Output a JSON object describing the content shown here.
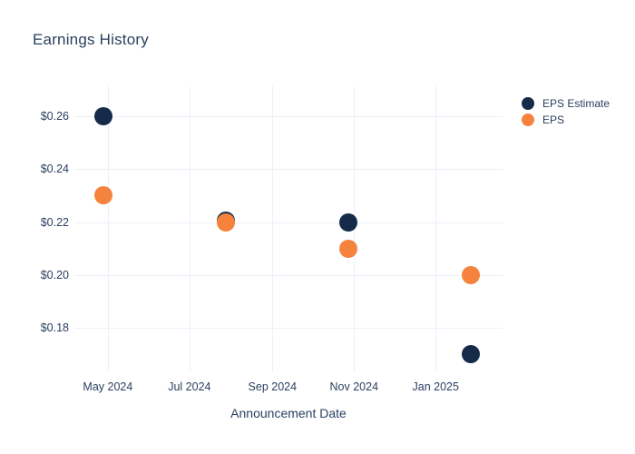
{
  "title": "Earnings History",
  "chart_data": {
    "type": "scatter",
    "title": "Earnings History",
    "xlabel": "Announcement Date",
    "ylabel": "",
    "grid": true,
    "legend_position": "outside-top-right",
    "background_color": "#ffffff",
    "grid_color": "#ebf0f8",
    "text_color": "#2a3f5f",
    "marker_size_px": 20,
    "xlim": [
      "2024-04-06",
      "2025-02-20"
    ],
    "ylim": [
      0.1633,
      0.2713
    ],
    "x_ticks": [
      {
        "value": "2024-05-01",
        "label": "May 2024"
      },
      {
        "value": "2024-07-01",
        "label": "Jul 2024"
      },
      {
        "value": "2024-09-01",
        "label": "Sep 2024"
      },
      {
        "value": "2024-11-01",
        "label": "Nov 2024"
      },
      {
        "value": "2025-01-01",
        "label": "Jan 2025"
      }
    ],
    "y_ticks": [
      {
        "value": 0.26,
        "label": "$0.26"
      },
      {
        "value": 0.24,
        "label": "$0.24"
      },
      {
        "value": 0.22,
        "label": "$0.22"
      },
      {
        "value": 0.2,
        "label": "$0.20"
      },
      {
        "value": 0.18,
        "label": "$0.18"
      }
    ],
    "series": [
      {
        "name": "EPS Estimate",
        "color": "#152b49",
        "points": [
          {
            "x": "2024-04-28",
            "y": 0.26
          },
          {
            "x": "2024-07-28",
            "y": 0.22
          },
          {
            "x": "2024-10-28",
            "y": 0.22
          },
          {
            "x": "2025-01-27",
            "y": 0.17
          }
        ]
      },
      {
        "name": "EPS",
        "color": "#f5833e",
        "points": [
          {
            "x": "2024-04-28",
            "y": 0.23
          },
          {
            "x": "2024-07-28",
            "y": 0.22
          },
          {
            "x": "2024-10-28",
            "y": 0.21
          },
          {
            "x": "2025-01-27",
            "y": 0.2
          }
        ]
      }
    ]
  }
}
